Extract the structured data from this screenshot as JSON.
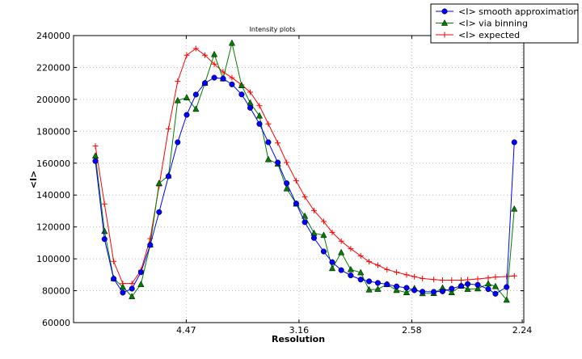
{
  "chart_data": {
    "type": "line",
    "title": "Intensity plots",
    "xlabel": "Resolution",
    "ylabel": "<I>",
    "x_scale": "reciprocal-square (1/d^2 linear)",
    "xlim": [
      "inf",
      2.24
    ],
    "ylim": [
      60000,
      240000
    ],
    "grid": true,
    "legend_position": "top-right, outside plot",
    "x_ticks": [
      {
        "label": "4.47",
        "value": 4.47
      },
      {
        "label": "3.16",
        "value": 3.16
      },
      {
        "label": "2.58",
        "value": 2.58
      },
      {
        "label": "2.24",
        "value": 2.24
      }
    ],
    "y_ticks": [
      "60000",
      "80000",
      "100000",
      "120000",
      "140000",
      "160000",
      "180000",
      "200000",
      "220000",
      "240000"
    ],
    "x": [
      10.15,
      8.53,
      7.49,
      6.76,
      6.21,
      5.78,
      5.42,
      5.13,
      4.87,
      4.65,
      4.46,
      4.29,
      4.14,
      4.0,
      3.88,
      3.77,
      3.66,
      3.57,
      3.48,
      3.4,
      3.32,
      3.25,
      3.18,
      3.12,
      3.06,
      3.0,
      2.95,
      2.9,
      2.85,
      2.8,
      2.76,
      2.72,
      2.68,
      2.64,
      2.6,
      2.57,
      2.54,
      2.5,
      2.47,
      2.44,
      2.41,
      2.39,
      2.36,
      2.33,
      2.31,
      2.28,
      2.26
    ],
    "series": [
      {
        "name": "<I> smooth approximation",
        "color": "#0000ff",
        "marker": "circle",
        "values": [
          161300,
          112400,
          87500,
          78800,
          81300,
          91600,
          108700,
          129300,
          151800,
          173100,
          190300,
          203000,
          210200,
          213600,
          213000,
          209400,
          203100,
          194700,
          184600,
          173100,
          160400,
          147400,
          134700,
          123000,
          113100,
          104600,
          97900,
          92900,
          89600,
          87000,
          85900,
          84900,
          84000,
          82700,
          81800,
          80300,
          79400,
          79300,
          79600,
          81300,
          83000,
          84200,
          83700,
          81000,
          78100,
          82300,
          173100
        ]
      },
      {
        "name": "<I> via binning",
        "color": "#007f00",
        "marker": "triangle",
        "values": [
          164600,
          117300,
          87700,
          82300,
          76400,
          84000,
          108800,
          147400,
          152100,
          199300,
          201100,
          193900,
          210200,
          228200,
          213000,
          235300,
          208700,
          197800,
          189700,
          162300,
          159600,
          144000,
          134500,
          126800,
          116100,
          114800,
          94000,
          104000,
          93300,
          91400,
          80600,
          81000,
          84000,
          80300,
          78900,
          81500,
          78300,
          78400,
          81800,
          78900,
          83000,
          81000,
          81300,
          84400,
          82700,
          74200,
          131300
        ]
      },
      {
        "name": "<I> expected",
        "color": "#ff0000",
        "marker": "plus",
        "values": [
          170700,
          134400,
          98400,
          84500,
          84500,
          92800,
          112700,
          145700,
          181500,
          211300,
          227700,
          231900,
          227700,
          222100,
          217200,
          213600,
          209100,
          204500,
          196000,
          184600,
          172700,
          160400,
          148900,
          138900,
          130300,
          123400,
          116600,
          111100,
          106300,
          101900,
          98200,
          96000,
          93300,
          91600,
          90000,
          88800,
          87700,
          87000,
          86600,
          86600,
          86600,
          86900,
          87400,
          88000,
          88600,
          88900,
          89300
        ]
      }
    ]
  }
}
